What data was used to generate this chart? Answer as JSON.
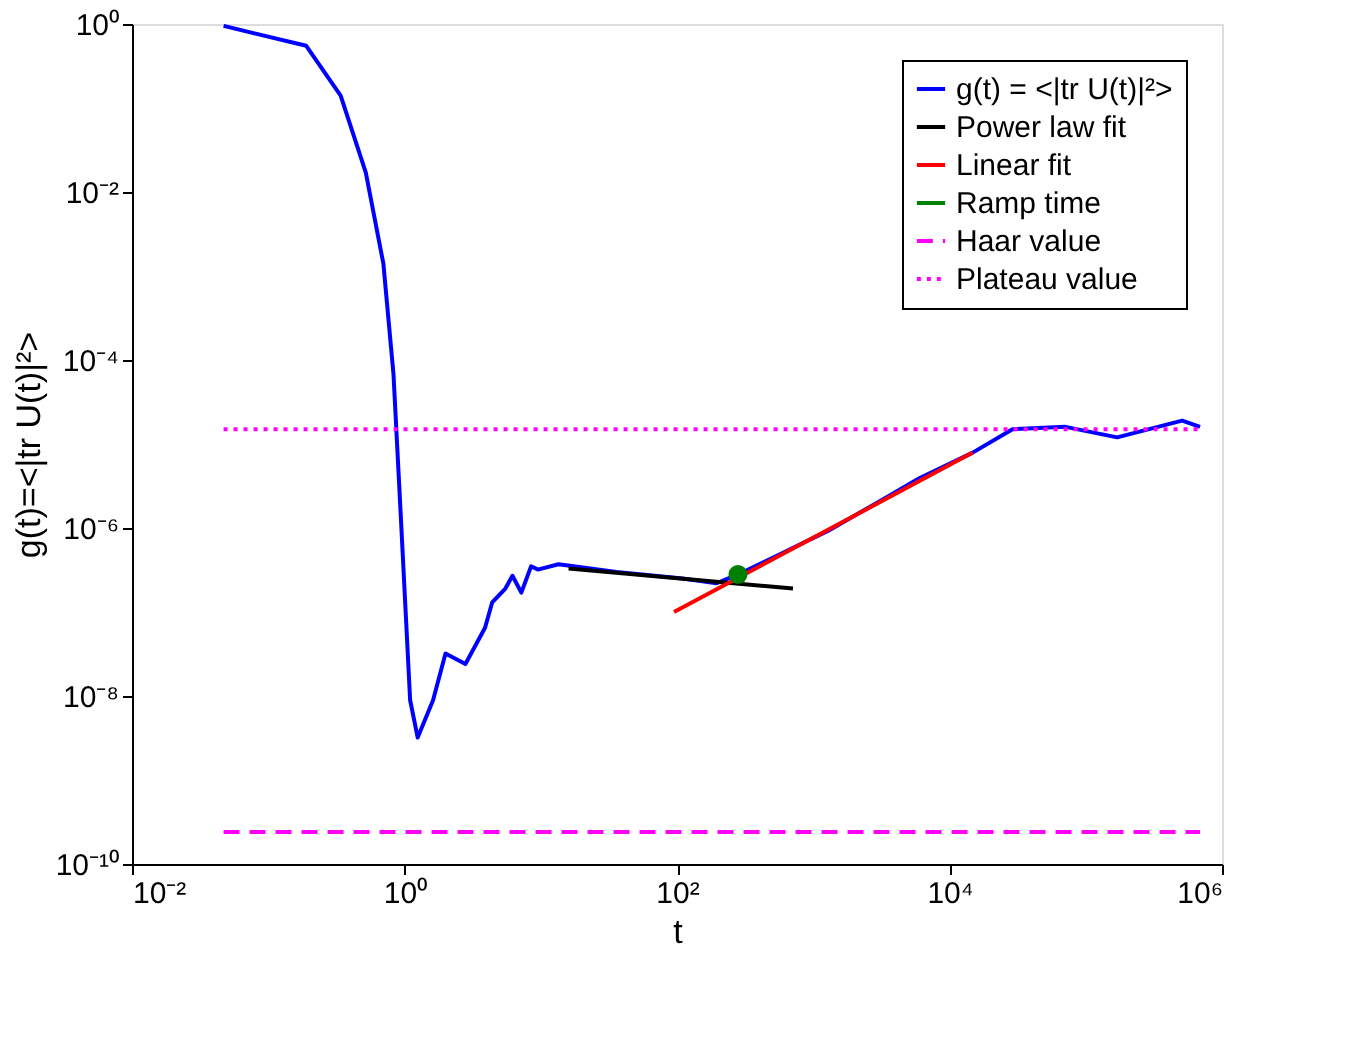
{
  "chart_data": {
    "type": "line",
    "xlabel": "t",
    "ylabel": "g(t)=<|tr U(t)|²>",
    "log": "xy",
    "grid": false,
    "legend": "top right",
    "xlim": [
      0.01,
      1000000
    ],
    "ylim": [
      1e-10,
      1
    ],
    "xticks": [
      {
        "value": 0.01,
        "label": "10⁻²"
      },
      {
        "value": 1,
        "label": "10⁰"
      },
      {
        "value": 100,
        "label": "10²"
      },
      {
        "value": 10000,
        "label": "10⁴"
      },
      {
        "value": 1000000,
        "label": "10⁶"
      }
    ],
    "yticks": [
      {
        "value": 1e-10,
        "label": "10⁻¹⁰"
      },
      {
        "value": 1e-08,
        "label": "10⁻⁸"
      },
      {
        "value": 1e-06,
        "label": "10⁻⁶"
      },
      {
        "value": 0.0001,
        "label": "10⁻⁴"
      },
      {
        "value": 0.01,
        "label": "10⁻²"
      },
      {
        "value": 1,
        "label": "10⁰"
      }
    ],
    "series": [
      {
        "name": "g(t) = <|tr U(t)|²>",
        "color": "#0000ff",
        "line_style": "solid",
        "marker": "none",
        "x": [
          0.047,
          0.19,
          0.34,
          0.52,
          0.7,
          0.83,
          0.93,
          1.1,
          1.25,
          1.62,
          2.0,
          2.8,
          3.9,
          4.4,
          5.5,
          6.2,
          7.2,
          8.5,
          9.5,
          13.5,
          36,
          110,
          195,
          280,
          590,
          1290,
          3100,
          6000,
          14800,
          29000,
          71000,
          170000,
          510000,
          690000
        ],
        "values": [
          0.95,
          0.55,
          0.14,
          0.017,
          0.0014,
          6.8e-05,
          1.9e-06,
          8.9e-09,
          3.2e-09,
          8.9e-09,
          3.2e-08,
          2.4e-08,
          6.5e-08,
          1.3e-07,
          1.9e-07,
          2.7e-07,
          1.7e-07,
          3.5e-07,
          3.2e-07,
          3.7e-07,
          3e-07,
          2.5e-07,
          2.2e-07,
          2.8e-07,
          5e-07,
          9.3e-07,
          2.1e-06,
          3.9e-06,
          7.9e-06,
          1.5e-05,
          1.6e-05,
          1.2e-05,
          1.9e-05,
          1.6e-05
        ]
      },
      {
        "name": "Power law fit",
        "color": "#000000",
        "line_style": "solid",
        "marker": "none",
        "x": [
          16,
          710
        ],
        "values": [
          3.3e-07,
          1.9e-07
        ]
      },
      {
        "name": "Linear fit",
        "color": "#ff0000",
        "line_style": "solid",
        "marker": "none",
        "x": [
          95,
          14800
        ],
        "values": [
          1e-07,
          7.9e-06
        ]
      },
      {
        "name": "Ramp time",
        "type": "scatter",
        "color": "#008000",
        "marker": "circle",
        "x": [
          280
        ],
        "values": [
          2.8e-07
        ]
      },
      {
        "name": "Haar value",
        "color": "#ff00ff",
        "line_style": "dashed",
        "marker": "none",
        "x": [
          0.047,
          690000
        ],
        "values": [
          2.4e-10,
          2.4e-10
        ]
      },
      {
        "name": "Plateau value",
        "color": "#ff00ff",
        "line_style": "dotted",
        "marker": "none",
        "x": [
          0.047,
          690000
        ],
        "values": [
          1.5e-05,
          1.5e-05
        ]
      }
    ]
  }
}
